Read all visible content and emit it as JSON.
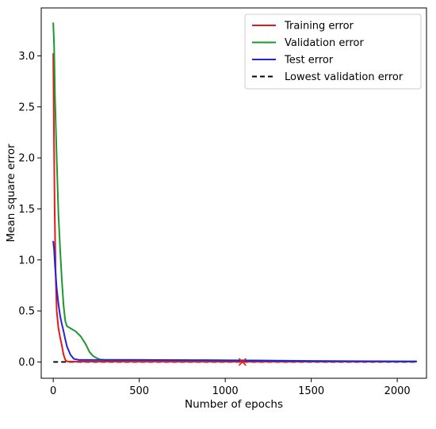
{
  "chart_data": {
    "type": "line",
    "title": "",
    "xlabel": "Number of epochs",
    "ylabel": "Mean square error",
    "xlim": [
      -70,
      2170
    ],
    "ylim": [
      -0.16,
      3.47
    ],
    "x_ticks": [
      0,
      500,
      1000,
      1500,
      2000
    ],
    "y_ticks": [
      0.0,
      0.5,
      1.0,
      1.5,
      2.0,
      2.5,
      3.0
    ],
    "x_tick_labels": [
      "0",
      "500",
      "1000",
      "1500",
      "2000"
    ],
    "y_tick_labels": [
      "0.0",
      "0.5",
      "1.0",
      "1.5",
      "2.0",
      "2.5",
      "3.0"
    ],
    "grid": false,
    "legend_position": "top-right",
    "series": [
      {
        "name": "Training error",
        "color": "#e41a1c",
        "style": "solid",
        "x": [
          0,
          3,
          8,
          14,
          20,
          30,
          40,
          50,
          60,
          70,
          80,
          100,
          150,
          300,
          1000,
          2110
        ],
        "y": [
          3.02,
          2.4,
          1.5,
          0.85,
          0.5,
          0.33,
          0.24,
          0.16,
          0.07,
          0.02,
          0.005,
          0.003,
          0.003,
          0.003,
          0.002,
          0.002
        ]
      },
      {
        "name": "Validation error",
        "color": "#1a9a2a",
        "style": "solid",
        "x": [
          0,
          5,
          10,
          20,
          30,
          40,
          50,
          60,
          70,
          80,
          100,
          130,
          160,
          190,
          210,
          230,
          250,
          270,
          300,
          400,
          800,
          1200,
          1500,
          2110
        ],
        "y": [
          3.32,
          3.1,
          2.6,
          2.0,
          1.45,
          1.1,
          0.8,
          0.55,
          0.4,
          0.35,
          0.33,
          0.3,
          0.25,
          0.17,
          0.1,
          0.06,
          0.04,
          0.025,
          0.02,
          0.02,
          0.018,
          0.015,
          0.01,
          0.005
        ]
      },
      {
        "name": "Test error",
        "color": "#2323d8",
        "style": "solid",
        "x": [
          0,
          5,
          10,
          20,
          30,
          40,
          50,
          60,
          70,
          80,
          100,
          120,
          150,
          200,
          300,
          500,
          1000,
          1500,
          2110
        ],
        "y": [
          1.18,
          1.1,
          0.95,
          0.72,
          0.57,
          0.45,
          0.37,
          0.3,
          0.22,
          0.15,
          0.07,
          0.03,
          0.02,
          0.02,
          0.02,
          0.02,
          0.015,
          0.008,
          0.005
        ]
      },
      {
        "name": "Lowest validation error",
        "color": "#000000",
        "style": "dashed",
        "x": [
          0,
          2110
        ],
        "y": [
          0.0,
          0.0
        ]
      }
    ],
    "markers": [
      {
        "symbol": "x",
        "color": "#e41a1c",
        "x": 1100,
        "y": 0.0
      }
    ]
  }
}
